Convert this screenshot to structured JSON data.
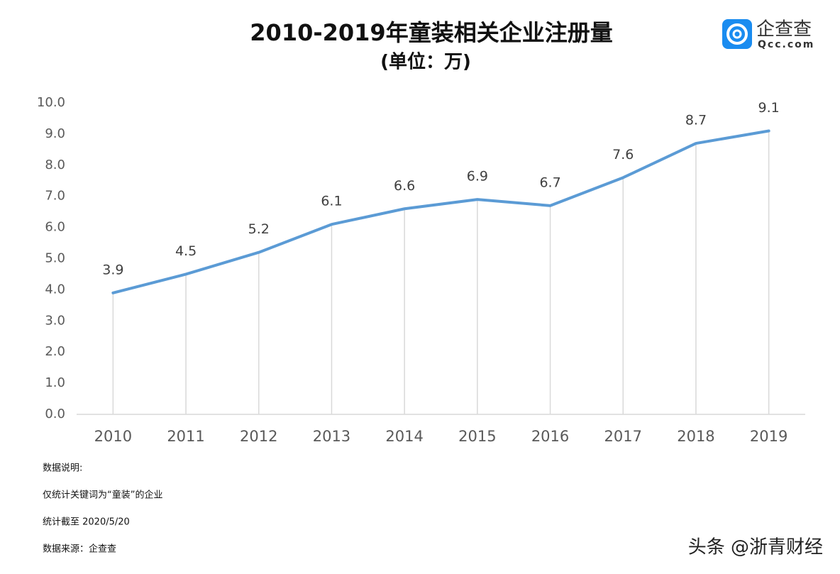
{
  "chart_data": {
    "type": "line",
    "title": "2010-2019年童装相关企业注册量",
    "subtitle": "(单位：万)",
    "categories": [
      "2010",
      "2011",
      "2012",
      "2013",
      "2014",
      "2015",
      "2016",
      "2017",
      "2018",
      "2019"
    ],
    "series": [
      {
        "name": "企业注册量",
        "color": "#5b9bd5",
        "values": [
          3.9,
          4.5,
          5.2,
          6.1,
          6.6,
          6.9,
          6.7,
          7.6,
          8.7,
          9.1
        ]
      }
    ],
    "ylim": [
      0,
      10
    ],
    "yticks": [
      {
        "value": 0,
        "label": "0.0"
      },
      {
        "value": 1,
        "label": "1.0"
      },
      {
        "value": 2,
        "label": "2.0"
      },
      {
        "value": 3,
        "label": "3.0"
      },
      {
        "value": 4,
        "label": "4.0"
      },
      {
        "value": 5,
        "label": "5.0"
      },
      {
        "value": 6,
        "label": "6.0"
      },
      {
        "value": 7,
        "label": "7.0"
      },
      {
        "value": 8,
        "label": "8.0"
      },
      {
        "value": 9,
        "label": "9.0"
      },
      {
        "value": 10,
        "label": "10.0"
      }
    ],
    "drop_lines": true,
    "legend": false
  },
  "notes": [
    "数据说明:",
    "仅统计关键词为“童装”的企业",
    "统计截至 2020/5/20",
    "数据来源：企查查"
  ],
  "logo": {
    "name": "企查查",
    "url": "Qcc.com"
  },
  "watermark": "头条 @浙青财经"
}
